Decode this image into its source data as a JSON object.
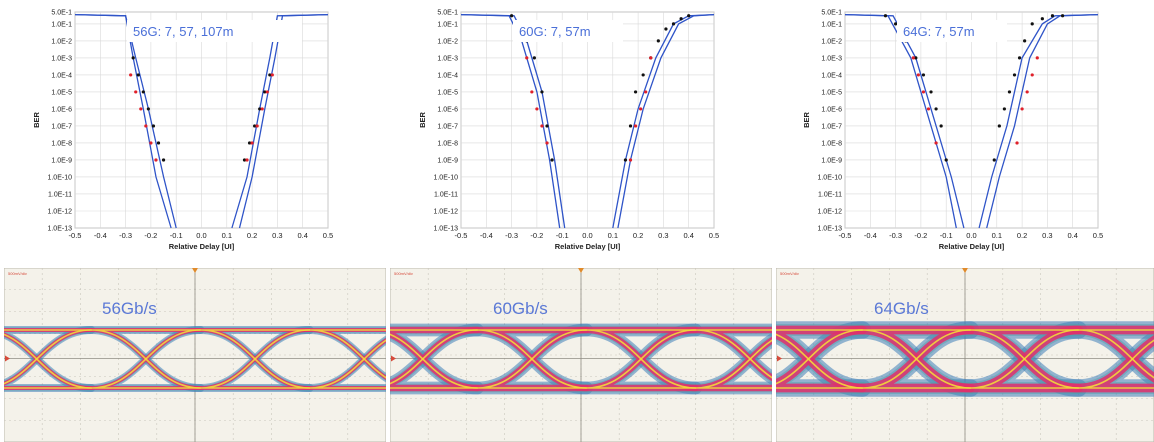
{
  "chart_data": [
    {
      "type": "scatter",
      "title": "56G: 7, 57, 107m",
      "xlabel": "Relative Delay [UI]",
      "ylabel": "BER",
      "y_scale": "log",
      "xlim": [
        -0.5,
        0.5
      ],
      "ylim": [
        1e-13,
        0.5
      ],
      "x_ticks": [
        "-0.5",
        "-0.4",
        "-0.3",
        "-0.2",
        "-0.1",
        "0.0",
        "0.1",
        "0.2",
        "0.3",
        "0.4",
        "0.5"
      ],
      "y_ticks": [
        "5.0E-1",
        "1.0E-1",
        "1.0E-2",
        "1.0E-3",
        "1.0E-4",
        "1.0E-5",
        "1.0E-6",
        "1.0E-7",
        "1.0E-8",
        "1.0E-9",
        "1.0E-10",
        "1.0E-11",
        "1.0E-12",
        "1.0E-13"
      ],
      "grid": true,
      "colors": {
        "fit": "#2f54c8",
        "black": "#111111",
        "red": "#e0202a"
      },
      "series": [
        {
          "color": "black",
          "kind": "points",
          "x": [
            -0.27,
            -0.25,
            -0.23,
            -0.21,
            -0.19,
            -0.17,
            -0.15,
            0.17,
            0.19,
            0.21,
            0.23,
            0.25,
            0.27
          ],
          "y": [
            0.001,
            0.0001,
            1e-05,
            1e-06,
            1e-07,
            1e-08,
            1e-09,
            1e-09,
            1e-08,
            1e-07,
            1e-06,
            1e-05,
            0.0001
          ]
        },
        {
          "color": "red",
          "kind": "points",
          "x": [
            -0.28,
            -0.26,
            -0.24,
            -0.22,
            -0.2,
            -0.18,
            0.18,
            0.2,
            0.22,
            0.24,
            0.26,
            0.28
          ],
          "y": [
            0.0001,
            1e-05,
            1e-06,
            1e-07,
            1e-08,
            1e-09,
            1e-09,
            1e-08,
            1e-07,
            1e-06,
            1e-05,
            0.0001
          ]
        },
        {
          "color": "fit",
          "kind": "fit",
          "x": [
            -0.5,
            -0.3,
            -0.26,
            -0.21,
            -0.15,
            -0.1
          ],
          "y": [
            0.35,
            0.3,
            0.001,
            1e-06,
            1e-10,
            1e-13
          ]
        },
        {
          "color": "fit",
          "kind": "fit",
          "x": [
            -0.5,
            -0.3,
            -0.27,
            -0.23,
            -0.18,
            -0.12
          ],
          "y": [
            0.35,
            0.3,
            0.001,
            1e-06,
            1e-10,
            1e-13
          ]
        },
        {
          "color": "fit",
          "kind": "fit",
          "x": [
            0.12,
            0.18,
            0.23,
            0.27,
            0.3,
            0.5
          ],
          "y": [
            1e-13,
            1e-10,
            1e-06,
            0.001,
            0.3,
            0.35
          ]
        },
        {
          "color": "fit",
          "kind": "fit",
          "x": [
            0.15,
            0.2,
            0.25,
            0.29,
            0.32,
            0.5
          ],
          "y": [
            1e-13,
            1e-10,
            1e-06,
            0.001,
            0.3,
            0.35
          ]
        }
      ]
    },
    {
      "type": "scatter",
      "title": "60G: 7, 57m",
      "xlabel": "Relative Delay [UI]",
      "ylabel": "BER",
      "y_scale": "log",
      "xlim": [
        -0.5,
        0.5
      ],
      "ylim": [
        1e-13,
        0.5
      ],
      "x_ticks": [
        "-0.5",
        "-0.4",
        "-0.3",
        "-0.2",
        "-0.1",
        "0.0",
        "0.1",
        "0.2",
        "0.3",
        "0.4",
        "0.5"
      ],
      "y_ticks": [
        "5.0E-1",
        "1.0E-1",
        "1.0E-2",
        "1.0E-3",
        "1.0E-4",
        "1.0E-5",
        "1.0E-6",
        "1.0E-7",
        "1.0E-8",
        "1.0E-9",
        "1.0E-10",
        "1.0E-11",
        "1.0E-12",
        "1.0E-13"
      ],
      "grid": true,
      "colors": {
        "fit": "#2f54c8",
        "black": "#111111",
        "red": "#e0202a"
      },
      "series": [
        {
          "color": "black",
          "kind": "points",
          "x": [
            -0.3,
            -0.27,
            -0.24,
            -0.21,
            -0.18,
            -0.16,
            -0.14,
            0.15,
            0.17,
            0.19,
            0.22,
            0.25,
            0.28,
            0.31,
            0.34,
            0.37,
            0.4
          ],
          "y": [
            0.3,
            0.1,
            0.01,
            0.001,
            1e-05,
            1e-07,
            1e-09,
            1e-09,
            1e-07,
            1e-05,
            0.0001,
            0.001,
            0.01,
            0.05,
            0.1,
            0.2,
            0.3
          ]
        },
        {
          "color": "red",
          "kind": "points",
          "x": [
            -0.24,
            -0.22,
            -0.2,
            -0.18,
            -0.16,
            0.17,
            0.19,
            0.21,
            0.23,
            0.25
          ],
          "y": [
            0.001,
            1e-05,
            1e-06,
            1e-07,
            1e-08,
            1e-09,
            1e-07,
            1e-06,
            1e-05,
            0.001
          ]
        },
        {
          "color": "fit",
          "kind": "fit",
          "x": [
            -0.5,
            -0.31,
            -0.26,
            -0.2,
            -0.15,
            -0.11
          ],
          "y": [
            0.35,
            0.3,
            0.01,
            1e-05,
            1e-09,
            1e-13
          ]
        },
        {
          "color": "fit",
          "kind": "fit",
          "x": [
            -0.5,
            -0.29,
            -0.24,
            -0.18,
            -0.13,
            -0.09
          ],
          "y": [
            0.35,
            0.3,
            0.01,
            1e-05,
            1e-09,
            1e-13
          ]
        },
        {
          "color": "fit",
          "kind": "fit",
          "x": [
            0.1,
            0.15,
            0.2,
            0.27,
            0.34,
            0.4,
            0.5
          ],
          "y": [
            1e-13,
            1e-09,
            1e-06,
            0.001,
            0.1,
            0.3,
            0.35
          ]
        },
        {
          "color": "fit",
          "kind": "fit",
          "x": [
            0.12,
            0.17,
            0.22,
            0.29,
            0.36,
            0.42,
            0.5
          ],
          "y": [
            1e-13,
            1e-09,
            1e-06,
            0.001,
            0.1,
            0.3,
            0.35
          ]
        }
      ]
    },
    {
      "type": "scatter",
      "title": "64G: 7, 57m",
      "xlabel": "Relative Delay [UI]",
      "ylabel": "BER",
      "y_scale": "log",
      "xlim": [
        -0.5,
        0.5
      ],
      "ylim": [
        1e-13,
        0.5
      ],
      "x_ticks": [
        "-0.5",
        "-0.4",
        "-0.3",
        "-0.2",
        "-0.1",
        "0.0",
        "0.1",
        "0.2",
        "0.3",
        "0.4",
        "0.5"
      ],
      "y_ticks": [
        "5.0E-1",
        "1.0E-1",
        "1.0E-2",
        "1.0E-3",
        "1.0E-4",
        "1.0E-5",
        "1.0E-6",
        "1.0E-7",
        "1.0E-8",
        "1.0E-9",
        "1.0E-10",
        "1.0E-11",
        "1.0E-12",
        "1.0E-13"
      ],
      "grid": true,
      "colors": {
        "fit": "#2f54c8",
        "black": "#111111",
        "red": "#e0202a"
      },
      "series": [
        {
          "color": "black",
          "kind": "points",
          "x": [
            -0.34,
            -0.3,
            -0.26,
            -0.22,
            -0.19,
            -0.16,
            -0.14,
            -0.12,
            -0.1,
            0.09,
            0.11,
            0.13,
            0.15,
            0.17,
            0.19,
            0.21,
            0.24,
            0.28,
            0.32,
            0.36
          ],
          "y": [
            0.3,
            0.1,
            0.01,
            0.001,
            0.0001,
            1e-05,
            1e-06,
            1e-07,
            1e-09,
            1e-09,
            1e-07,
            1e-06,
            1e-05,
            0.0001,
            0.001,
            0.01,
            0.1,
            0.2,
            0.3,
            0.3
          ]
        },
        {
          "color": "red",
          "kind": "points",
          "x": [
            -0.23,
            -0.21,
            -0.19,
            -0.17,
            -0.14,
            0.18,
            0.2,
            0.22,
            0.24,
            0.26
          ],
          "y": [
            0.001,
            0.0001,
            1e-05,
            1e-06,
            1e-08,
            1e-08,
            1e-06,
            1e-05,
            0.0001,
            0.001
          ]
        },
        {
          "color": "fit",
          "kind": "fit",
          "x": [
            -0.5,
            -0.33,
            -0.24,
            -0.16,
            -0.1,
            -0.06
          ],
          "y": [
            0.35,
            0.3,
            0.001,
            1e-07,
            1e-10,
            1e-13
          ]
        },
        {
          "color": "fit",
          "kind": "fit",
          "x": [
            -0.5,
            -0.31,
            -0.22,
            -0.14,
            -0.08,
            -0.03
          ],
          "y": [
            0.35,
            0.3,
            0.001,
            1e-07,
            1e-10,
            1e-13
          ]
        },
        {
          "color": "fit",
          "kind": "fit",
          "x": [
            0.03,
            0.08,
            0.14,
            0.2,
            0.28,
            0.33,
            0.5
          ],
          "y": [
            1e-13,
            1e-10,
            1e-07,
            0.001,
            0.1,
            0.3,
            0.35
          ]
        },
        {
          "color": "fit",
          "kind": "fit",
          "x": [
            0.06,
            0.11,
            0.17,
            0.23,
            0.3,
            0.35,
            0.5
          ],
          "y": [
            1e-13,
            1e-10,
            1e-07,
            0.001,
            0.1,
            0.3,
            0.35
          ]
        }
      ]
    }
  ],
  "eye_diagrams": [
    {
      "label": "56Gb/s",
      "scale": "500mV/div"
    },
    {
      "label": "60Gb/s",
      "scale": "500mV/div"
    },
    {
      "label": "64Gb/s",
      "scale": "500mV/div"
    }
  ],
  "colors": {
    "eye_background": "#f4f2ea",
    "eye_grid": "#c9c6bc",
    "eye_trace_red": "#e0306c",
    "eye_trace_yellow": "#f2d93a",
    "eye_trace_blue": "#3f7fb8",
    "eye_trace_teal": "#4fa0a8",
    "trigger_marker": "#e08a2a"
  }
}
